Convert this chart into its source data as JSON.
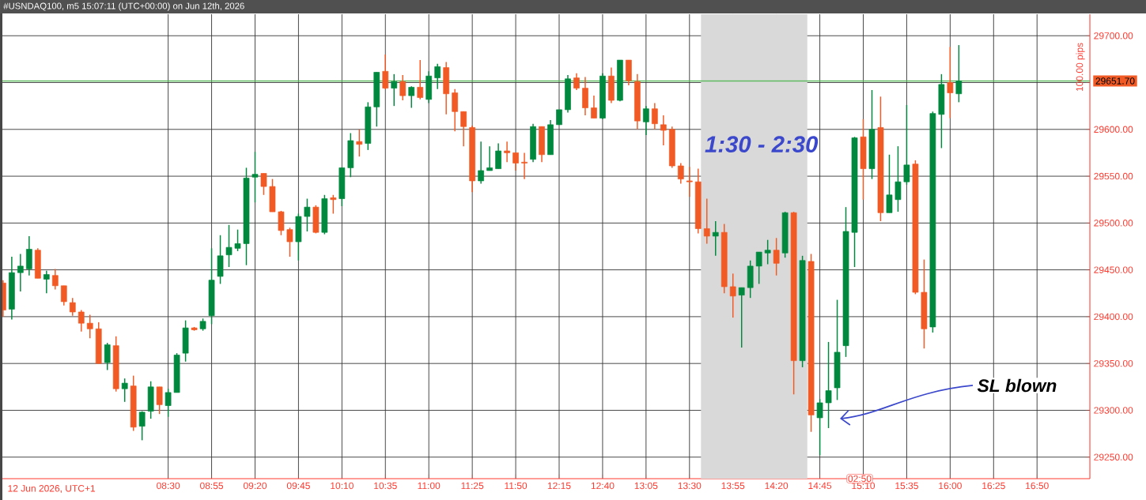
{
  "chart_data": {
    "type": "candlestick",
    "title": "#USNDAQ100, m5 15:07:11 (UTC+00:00) on Jun 12th, 2026",
    "x": [
      6.9167,
      7.0,
      7.0833,
      7.1667,
      7.25,
      7.3333,
      7.4167,
      7.5,
      7.5833,
      7.6667,
      7.75,
      7.8333,
      7.9167,
      8.0,
      8.0833,
      8.1667,
      8.25,
      8.3333,
      8.4167,
      8.5,
      8.5833,
      8.6667,
      8.75,
      8.8333,
      8.9167,
      9.0,
      9.0833,
      9.1667,
      9.25,
      9.3333,
      9.4167,
      9.5,
      9.5833,
      9.6667,
      9.75,
      9.8333,
      9.9167,
      10.0,
      10.0833,
      10.1667,
      10.25,
      10.3333,
      10.4167,
      10.5,
      10.5833,
      10.6667,
      10.75,
      10.8333,
      10.9167,
      11.0,
      11.0833,
      11.1667,
      11.25,
      11.3333,
      11.4167,
      11.5,
      11.5833,
      11.6667,
      11.75,
      11.8333,
      11.9167,
      12.0,
      12.0833,
      12.1667,
      12.25,
      12.3333,
      12.4167,
      12.5,
      12.5833,
      12.6667,
      12.75,
      12.8333,
      12.9167,
      13.0,
      13.0833,
      13.1667,
      13.25,
      13.3333,
      13.4167,
      13.5,
      13.5833,
      13.6667,
      13.75,
      13.8333,
      13.9167,
      14.0,
      14.0833,
      14.1667,
      14.25,
      14.3333,
      14.4167,
      14.5,
      14.5833,
      14.6667,
      14.75,
      14.8333,
      14.9167,
      15.0,
      15.0833,
      15.1667,
      15.25,
      15.3333,
      15.4167,
      15.5,
      15.5833,
      15.6667,
      15.75,
      15.8333,
      15.9167,
      16.0,
      16.0833
    ],
    "ohlc": [
      [
        29436,
        29439,
        29400,
        29407
      ],
      [
        29408,
        29464,
        29397,
        29447
      ],
      [
        29447,
        29467,
        29427,
        29454
      ],
      [
        29451,
        29486,
        29444,
        29472
      ],
      [
        29471,
        29473,
        29441,
        29441
      ],
      [
        29440,
        29449,
        29425,
        29445
      ],
      [
        29444,
        29451,
        29429,
        29433
      ],
      [
        29433,
        29433,
        29412,
        29416
      ],
      [
        29415,
        29420,
        29401,
        29405
      ],
      [
        29405,
        29407,
        29384,
        29393
      ],
      [
        29393,
        29402,
        29377,
        29387
      ],
      [
        29387,
        29394,
        29350,
        29350
      ],
      [
        29351,
        29372,
        29343,
        29370
      ],
      [
        29369,
        29379,
        29320,
        29323
      ],
      [
        29323,
        29334,
        29309,
        29329
      ],
      [
        29326,
        29337,
        29278,
        29282
      ],
      [
        29283,
        29299,
        29268,
        29298
      ],
      [
        29299,
        29331,
        29291,
        29325
      ],
      [
        29325,
        29325,
        29296,
        29306
      ],
      [
        29305,
        29323,
        29293,
        29319
      ],
      [
        29319,
        29361,
        29319,
        29359
      ],
      [
        29361,
        29396,
        29352,
        29388
      ],
      [
        29388,
        29389,
        29385,
        29386
      ],
      [
        29387,
        29398,
        29385,
        29395
      ],
      [
        29401,
        29473,
        29392,
        29439
      ],
      [
        29443,
        29487,
        29435,
        29465
      ],
      [
        29466,
        29498,
        29453,
        29474
      ],
      [
        29473,
        29493,
        29470,
        29478
      ],
      [
        29478,
        29559,
        29455,
        29548
      ],
      [
        29549,
        29576,
        29522,
        29552
      ],
      [
        29553,
        29553,
        29530,
        29539
      ],
      [
        29539,
        29547,
        29512,
        29512
      ],
      [
        29512,
        29513,
        29487,
        29492
      ],
      [
        29493,
        29495,
        29464,
        29480
      ],
      [
        29480,
        29510,
        29460,
        29507
      ],
      [
        29507,
        29526,
        29491,
        29517
      ],
      [
        29517,
        29519,
        29489,
        29490
      ],
      [
        29490,
        29530,
        29488,
        29526
      ],
      [
        29527,
        29530,
        29510,
        29525
      ],
      [
        29526,
        29559,
        29518,
        29559
      ],
      [
        29559,
        29596,
        29549,
        29588
      ],
      [
        29587,
        29600,
        29571,
        29584
      ],
      [
        29585,
        29629,
        29578,
        29624
      ],
      [
        29624,
        29661,
        29603,
        29661
      ],
      [
        29662,
        29680,
        29643,
        29644
      ],
      [
        29644,
        29659,
        29625,
        29651
      ],
      [
        29651,
        29658,
        29631,
        29636
      ],
      [
        29636,
        29646,
        29623,
        29645
      ],
      [
        29645,
        29674,
        29632,
        29634
      ],
      [
        29632,
        29662,
        29628,
        29657
      ],
      [
        29655,
        29670,
        29643,
        29667
      ],
      [
        29666,
        29672,
        29616,
        29638
      ],
      [
        29639,
        29643,
        29598,
        29619
      ],
      [
        29619,
        29619,
        29582,
        29603
      ],
      [
        29602,
        29604,
        29533,
        29545
      ],
      [
        29545,
        29587,
        29542,
        29556
      ],
      [
        29556,
        29582,
        29556,
        29559
      ],
      [
        29558,
        29585,
        29558,
        29577
      ],
      [
        29577,
        29587,
        29565,
        29575
      ],
      [
        29575,
        29575,
        29556,
        29564
      ],
      [
        29565,
        29575,
        29547,
        29564
      ],
      [
        29568,
        29606,
        29565,
        29603
      ],
      [
        29603,
        29603,
        29565,
        29573
      ],
      [
        29573,
        29610,
        29573,
        29605
      ],
      [
        29605,
        29621,
        29605,
        29621
      ],
      [
        29621,
        29658,
        29618,
        29654
      ],
      [
        29655,
        29660,
        29642,
        29644
      ],
      [
        29644,
        29656,
        29615,
        29623
      ],
      [
        29623,
        29636,
        29612,
        29612
      ],
      [
        29612,
        29660,
        29611,
        29657
      ],
      [
        29657,
        29666,
        29628,
        29631
      ],
      [
        29631,
        29674,
        29630,
        29674
      ],
      [
        29674,
        29674,
        29647,
        29652
      ],
      [
        29651,
        29659,
        29600,
        29609
      ],
      [
        29608,
        29625,
        29594,
        29622
      ],
      [
        29622,
        29628,
        29600,
        29606
      ],
      [
        29605,
        29615,
        29583,
        29599
      ],
      [
        29600,
        29603,
        29559,
        29561
      ],
      [
        29561,
        29564,
        29542,
        29547
      ],
      [
        29545,
        29560,
        29528,
        29544
      ],
      [
        29544,
        29558,
        29489,
        29494
      ],
      [
        29494,
        29526,
        29478,
        29486
      ],
      [
        29486,
        29502,
        29465,
        29490
      ],
      [
        29490,
        29499,
        29425,
        29432
      ],
      [
        29432,
        29446,
        29399,
        29422
      ],
      [
        29423,
        29431,
        29367,
        29431
      ],
      [
        29431,
        29460,
        29420,
        29454
      ],
      [
        29454,
        29469,
        29435,
        29469
      ],
      [
        29468,
        29482,
        29456,
        29471
      ],
      [
        29471,
        29484,
        29444,
        29457
      ],
      [
        29468,
        29512,
        29463,
        29511
      ],
      [
        29511,
        29512,
        29317,
        29353
      ],
      [
        29353,
        29465,
        29346,
        29460
      ],
      [
        29459,
        29467,
        29277,
        29295
      ],
      [
        29292,
        29312,
        29252,
        29308
      ],
      [
        29308,
        29373,
        29281,
        29321
      ],
      [
        29324,
        29418,
        29311,
        29362
      ],
      [
        29369,
        29517,
        29357,
        29491
      ],
      [
        29490,
        29592,
        29453,
        29591
      ],
      [
        29592,
        29611,
        29525,
        29558
      ],
      [
        29558,
        29642,
        29547,
        29600
      ],
      [
        29602,
        29635,
        29502,
        29511
      ],
      [
        29511,
        29573,
        29511,
        29530
      ],
      [
        29525,
        29582,
        29512,
        29544
      ],
      [
        29544,
        29626,
        29541,
        29562
      ],
      [
        29563,
        29567,
        29424,
        29426
      ],
      [
        29426,
        29461,
        29366,
        29387
      ],
      [
        29389,
        29619,
        29383,
        29617
      ],
      [
        29616,
        29659,
        29580,
        29648
      ],
      [
        29650,
        29688,
        29612,
        29639
      ],
      [
        29638,
        29690,
        29629,
        29651.7
      ]
    ],
    "colors": [
      "#f15a24",
      "#00893e",
      "#00893e",
      "#00893e",
      "#f15a24",
      "#00893e",
      "#f15a24",
      "#f15a24",
      "#f15a24",
      "#f15a24",
      "#f15a24",
      "#f15a24",
      "#00893e",
      "#f15a24",
      "#00893e",
      "#f15a24",
      "#00893e",
      "#00893e",
      "#f15a24",
      "#00893e",
      "#00893e",
      "#00893e",
      "#f15a24",
      "#00893e",
      "#00893e",
      "#00893e",
      "#00893e",
      "#00893e",
      "#00893e",
      "#00893e",
      "#f15a24",
      "#f15a24",
      "#f15a24",
      "#f15a24",
      "#00893e",
      "#00893e",
      "#f15a24",
      "#00893e",
      "#f15a24",
      "#00893e",
      "#00893e",
      "#f15a24",
      "#00893e",
      "#00893e",
      "#f15a24",
      "#00893e",
      "#f15a24",
      "#00893e",
      "#f15a24",
      "#00893e",
      "#00893e",
      "#f15a24",
      "#f15a24",
      "#f15a24",
      "#f15a24",
      "#00893e",
      "#00893e",
      "#00893e",
      "#f15a24",
      "#f15a24",
      "#f15a24",
      "#00893e",
      "#f15a24",
      "#00893e",
      "#00893e",
      "#00893e",
      "#f15a24",
      "#f15a24",
      "#f15a24",
      "#00893e",
      "#f15a24",
      "#00893e",
      "#f15a24",
      "#f15a24",
      "#00893e",
      "#f15a24",
      "#f15a24",
      "#f15a24",
      "#f15a24",
      "#f15a24",
      "#f15a24",
      "#f15a24",
      "#00893e",
      "#f15a24",
      "#f15a24",
      "#00893e",
      "#00893e",
      "#00893e",
      "#00893e",
      "#f15a24",
      "#00893e",
      "#f15a24",
      "#00893e",
      "#f15a24",
      "#00893e",
      "#00893e",
      "#00893e",
      "#00893e",
      "#00893e",
      "#f15a24",
      "#00893e",
      "#f15a24",
      "#00893e",
      "#00893e",
      "#00893e",
      "#f15a24",
      "#f15a24",
      "#00893e",
      "#00893e",
      "#f15a24",
      "#00893e"
    ],
    "xlim": [
      6.91,
      17.34
    ],
    "ylim": [
      29227,
      29723
    ],
    "xticks": [
      {
        "value": 8.5,
        "label": "08:30"
      },
      {
        "value": 8.9167,
        "label": "08:55"
      },
      {
        "value": 9.3333,
        "label": "09:20"
      },
      {
        "value": 9.75,
        "label": "09:45"
      },
      {
        "value": 10.1667,
        "label": "10:10"
      },
      {
        "value": 10.5833,
        "label": "10:35"
      },
      {
        "value": 11.0,
        "label": "11:00"
      },
      {
        "value": 11.4167,
        "label": "11:25"
      },
      {
        "value": 11.8333,
        "label": "11:50"
      },
      {
        "value": 12.25,
        "label": "12:15"
      },
      {
        "value": 12.6667,
        "label": "12:40"
      },
      {
        "value": 13.0833,
        "label": "13:05"
      },
      {
        "value": 13.5,
        "label": "13:30"
      },
      {
        "value": 13.9167,
        "label": "13:55"
      },
      {
        "value": 14.3333,
        "label": "14:20"
      },
      {
        "value": 14.75,
        "label": "14:45"
      },
      {
        "value": 15.1667,
        "label": "15:10"
      },
      {
        "value": 15.5833,
        "label": "15:35"
      },
      {
        "value": 16.0,
        "label": "16:00"
      },
      {
        "value": 16.4167,
        "label": "16:25"
      },
      {
        "value": 16.8333,
        "label": "16:50"
      }
    ],
    "yticks": [
      {
        "value": 29250,
        "label": "29250.00"
      },
      {
        "value": 29300,
        "label": "29300.00"
      },
      {
        "value": 29350,
        "label": "29350.00"
      },
      {
        "value": 29400,
        "label": "29400.00"
      },
      {
        "value": 29450,
        "label": "29450.00"
      },
      {
        "value": 29500,
        "label": "29500.00"
      },
      {
        "value": 29550,
        "label": "29550.00"
      },
      {
        "value": 29600,
        "label": "29600.00"
      },
      {
        "value": 29650,
        "label": null
      },
      {
        "value": 29700,
        "label": "29700.00"
      }
    ],
    "grid": true,
    "ref_lines": [
      {
        "axis": "y",
        "value": 29651.7,
        "label": "29651.70",
        "color": "#5cb85c"
      }
    ],
    "bands": [
      {
        "axis": "x",
        "from": 13.61,
        "to": 14.63,
        "label": "1:30 - 2:30",
        "color": "#d9d9d9"
      }
    ],
    "annotations": [
      "12 Jun 2026, UTC+1",
      "02:50",
      "100.00 pips",
      "SL blown"
    ]
  }
}
